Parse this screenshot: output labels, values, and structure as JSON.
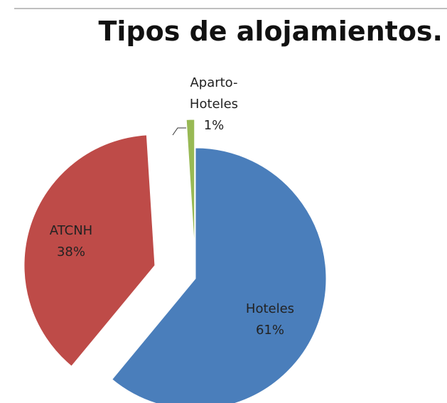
{
  "chart_data": {
    "type": "pie",
    "title": "Tipos de alojamientos.",
    "categories": [
      "Hoteles",
      "ATCNH",
      "Aparto-Hoteles"
    ],
    "values": [
      61,
      38,
      1
    ],
    "value_labels": [
      "61%",
      "38%",
      "1%"
    ],
    "colors": [
      "#4a7ebb",
      "#be4b48",
      "#98b954"
    ]
  }
}
